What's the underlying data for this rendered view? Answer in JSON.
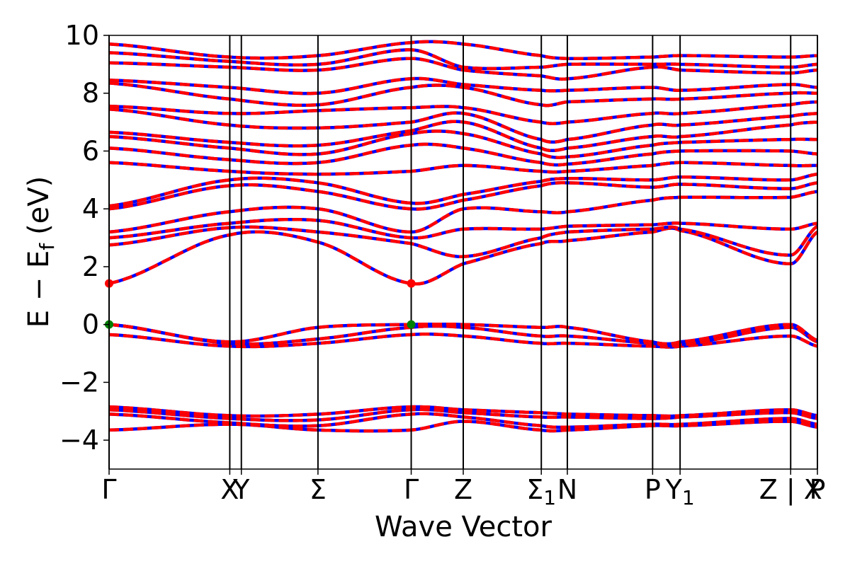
{
  "chart_data": {
    "type": "line",
    "title": "",
    "xlabel": "Wave Vector",
    "ylabel": "E − E_f (eV)",
    "ylabel_parts": {
      "main": "E − E",
      "sub": "f",
      "unit": "(eV)"
    },
    "ylim": [
      -5,
      10
    ],
    "yticks": [
      -4,
      -2,
      0,
      2,
      4,
      6,
      8,
      10
    ],
    "ytick_labels": [
      "−4",
      "−2",
      "0",
      "2",
      "4",
      "6",
      "8",
      "10"
    ],
    "xlim": [
      0,
      9.8
    ],
    "high_symmetry_points": [
      {
        "label": "Γ",
        "sub": "",
        "x": 0.0
      },
      {
        "label": "X",
        "sub": "",
        "x": 1.67
      },
      {
        "label": "Y",
        "sub": "",
        "x": 1.83
      },
      {
        "label": "Σ",
        "sub": "",
        "x": 2.89
      },
      {
        "label": "Γ",
        "sub": "",
        "x": 4.18
      },
      {
        "label": "Z",
        "sub": "",
        "x": 4.9
      },
      {
        "label": "Σ",
        "sub": "1",
        "x": 5.98
      },
      {
        "label": "N",
        "sub": "",
        "x": 6.34
      },
      {
        "label": "P",
        "sub": "",
        "x": 7.52
      },
      {
        "label": "Y",
        "sub": "1",
        "x": 7.9
      },
      {
        "label": "Z | X",
        "sub": "",
        "x": 9.43
      },
      {
        "label": "P",
        "sub": "",
        "x": 9.8
      }
    ],
    "markers": [
      {
        "name": "CBM",
        "x": 0.0,
        "y": 1.42,
        "color": "#ff0000"
      },
      {
        "name": "CBM",
        "x": 4.18,
        "y": 1.42,
        "color": "#ff0000"
      },
      {
        "name": "VBM",
        "x": 0.0,
        "y": 0.0,
        "color": "#008000"
      },
      {
        "name": "VBM",
        "x": 4.18,
        "y": 0.0,
        "color": "#008000"
      }
    ],
    "line_colors": {
      "spin_down": "#0000ff",
      "spin_up": "#ff0000"
    },
    "bands": [
      {
        "nodes": [
          [
            0,
            -3.65
          ],
          [
            1.67,
            -3.45
          ],
          [
            2.89,
            -3.65
          ],
          [
            4.18,
            -3.65
          ],
          [
            4.9,
            -3.35
          ],
          [
            5.98,
            -3.65
          ],
          [
            6.34,
            -3.65
          ],
          [
            7.52,
            -3.5
          ],
          [
            7.9,
            -3.5
          ],
          [
            9.43,
            -3.35
          ],
          [
            9.8,
            -3.55
          ]
        ]
      },
      {
        "nodes": [
          [
            0,
            -3.1
          ],
          [
            1.67,
            -3.4
          ],
          [
            2.89,
            -3.5
          ],
          [
            4.18,
            -3.1
          ],
          [
            4.9,
            -3.2
          ],
          [
            5.98,
            -3.5
          ],
          [
            6.34,
            -3.55
          ],
          [
            7.52,
            -3.45
          ],
          [
            7.9,
            -3.45
          ],
          [
            9.43,
            -3.25
          ],
          [
            9.8,
            -3.45
          ]
        ]
      },
      {
        "nodes": [
          [
            0,
            -2.95
          ],
          [
            1.67,
            -3.25
          ],
          [
            2.89,
            -3.3
          ],
          [
            4.18,
            -2.95
          ],
          [
            4.9,
            -3.05
          ],
          [
            5.98,
            -3.2
          ],
          [
            6.34,
            -3.2
          ],
          [
            7.52,
            -3.25
          ],
          [
            7.9,
            -3.2
          ],
          [
            9.43,
            -3.05
          ],
          [
            9.8,
            -3.25
          ]
        ]
      },
      {
        "nodes": [
          [
            0,
            -2.85
          ],
          [
            1.67,
            -3.15
          ],
          [
            2.89,
            -3.1
          ],
          [
            4.18,
            -2.85
          ],
          [
            4.9,
            -2.95
          ],
          [
            5.98,
            -3.05
          ],
          [
            6.34,
            -3.1
          ],
          [
            7.52,
            -3.15
          ],
          [
            7.9,
            -3.15
          ],
          [
            9.43,
            -2.95
          ],
          [
            9.8,
            -3.15
          ]
        ]
      },
      {
        "nodes": [
          [
            0,
            -0.35
          ],
          [
            1.67,
            -0.75
          ],
          [
            2.89,
            -0.65
          ],
          [
            4.18,
            -0.35
          ],
          [
            4.9,
            -0.4
          ],
          [
            5.98,
            -0.65
          ],
          [
            6.34,
            -0.65
          ],
          [
            7.52,
            -0.75
          ],
          [
            7.9,
            -0.75
          ],
          [
            9.43,
            -0.4
          ],
          [
            9.8,
            -0.75
          ]
        ]
      },
      {
        "nodes": [
          [
            0,
            0.0
          ],
          [
            1.67,
            -0.65
          ],
          [
            2.89,
            -0.5
          ],
          [
            4.18,
            -0.1
          ],
          [
            4.9,
            -0.1
          ],
          [
            5.98,
            -0.4
          ],
          [
            6.34,
            -0.4
          ],
          [
            7.52,
            -0.65
          ],
          [
            7.9,
            -0.7
          ],
          [
            9.43,
            -0.1
          ],
          [
            9.8,
            -0.6
          ]
        ]
      },
      {
        "nodes": [
          [
            0,
            0.0
          ],
          [
            1.67,
            -0.6
          ],
          [
            2.89,
            -0.1
          ],
          [
            4.18,
            0.0
          ],
          [
            4.9,
            0.0
          ],
          [
            5.98,
            -0.1
          ],
          [
            6.34,
            -0.1
          ],
          [
            7.52,
            -0.6
          ],
          [
            7.9,
            -0.6
          ],
          [
            9.43,
            0.0
          ],
          [
            9.8,
            -0.55
          ]
        ]
      },
      {
        "nodes": [
          [
            0,
            1.42
          ],
          [
            1.67,
            3.1
          ],
          [
            2.89,
            2.85
          ],
          [
            4.18,
            1.42
          ],
          [
            4.9,
            2.1
          ],
          [
            5.98,
            2.8
          ],
          [
            6.34,
            2.9
          ],
          [
            7.52,
            3.2
          ],
          [
            7.9,
            3.25
          ],
          [
            9.43,
            2.1
          ],
          [
            9.8,
            3.2
          ]
        ]
      },
      {
        "nodes": [
          [
            0,
            2.75
          ],
          [
            1.67,
            3.35
          ],
          [
            2.89,
            3.2
          ],
          [
            4.18,
            2.8
          ],
          [
            4.9,
            2.35
          ],
          [
            5.98,
            3.0
          ],
          [
            6.34,
            3.2
          ],
          [
            7.52,
            3.3
          ],
          [
            7.9,
            3.3
          ],
          [
            9.43,
            2.4
          ],
          [
            9.8,
            3.4
          ]
        ]
      },
      {
        "nodes": [
          [
            0,
            3.0
          ],
          [
            1.67,
            3.5
          ],
          [
            2.89,
            3.6
          ],
          [
            4.18,
            3.0
          ],
          [
            4.9,
            3.3
          ],
          [
            5.98,
            3.3
          ],
          [
            6.34,
            3.4
          ],
          [
            7.52,
            3.45
          ],
          [
            7.9,
            3.5
          ],
          [
            9.43,
            3.3
          ],
          [
            9.8,
            3.5
          ]
        ]
      },
      {
        "nodes": [
          [
            0,
            3.2
          ],
          [
            1.67,
            3.9
          ],
          [
            2.89,
            4.0
          ],
          [
            4.18,
            3.2
          ],
          [
            4.9,
            4.0
          ],
          [
            5.98,
            3.9
          ],
          [
            6.34,
            3.9
          ],
          [
            7.52,
            4.3
          ],
          [
            7.9,
            4.4
          ],
          [
            9.43,
            4.4
          ],
          [
            9.8,
            4.6
          ]
        ]
      },
      {
        "nodes": [
          [
            0,
            4.0
          ],
          [
            1.67,
            4.8
          ],
          [
            2.89,
            4.6
          ],
          [
            4.18,
            4.0
          ],
          [
            4.9,
            4.3
          ],
          [
            5.98,
            4.8
          ],
          [
            6.34,
            4.9
          ],
          [
            7.52,
            4.75
          ],
          [
            7.9,
            4.85
          ],
          [
            9.43,
            4.7
          ],
          [
            9.8,
            4.9
          ]
        ]
      },
      {
        "nodes": [
          [
            0,
            4.1
          ],
          [
            1.67,
            5.0
          ],
          [
            2.89,
            4.9
          ],
          [
            4.18,
            4.2
          ],
          [
            4.9,
            4.5
          ],
          [
            5.98,
            4.95
          ],
          [
            6.34,
            5.05
          ],
          [
            7.52,
            5.0
          ],
          [
            7.9,
            5.1
          ],
          [
            9.43,
            5.0
          ],
          [
            9.8,
            5.2
          ]
        ]
      },
      {
        "nodes": [
          [
            0,
            5.6
          ],
          [
            1.67,
            5.3
          ],
          [
            2.89,
            5.2
          ],
          [
            4.18,
            5.3
          ],
          [
            4.9,
            5.5
          ],
          [
            5.98,
            5.3
          ],
          [
            6.34,
            5.3
          ],
          [
            7.52,
            5.5
          ],
          [
            7.9,
            5.6
          ],
          [
            9.43,
            5.5
          ],
          [
            9.8,
            5.5
          ]
        ]
      },
      {
        "nodes": [
          [
            0,
            6.1
          ],
          [
            1.67,
            5.7
          ],
          [
            2.89,
            5.6
          ],
          [
            4.18,
            6.2
          ],
          [
            4.9,
            6.1
          ],
          [
            5.98,
            5.6
          ],
          [
            6.34,
            5.55
          ],
          [
            7.52,
            5.9
          ],
          [
            7.9,
            6.0
          ],
          [
            9.43,
            6.0
          ],
          [
            9.8,
            5.9
          ]
        ]
      },
      {
        "nodes": [
          [
            0,
            6.5
          ],
          [
            1.67,
            6.1
          ],
          [
            2.89,
            5.9
          ],
          [
            4.18,
            6.6
          ],
          [
            4.9,
            6.6
          ],
          [
            5.98,
            5.9
          ],
          [
            6.34,
            5.8
          ],
          [
            7.52,
            6.2
          ],
          [
            7.9,
            6.3
          ],
          [
            9.43,
            6.4
          ],
          [
            9.8,
            6.4
          ]
        ]
      },
      {
        "nodes": [
          [
            0,
            6.65
          ],
          [
            1.67,
            6.3
          ],
          [
            2.89,
            6.2
          ],
          [
            4.18,
            6.7
          ],
          [
            4.9,
            7.0
          ],
          [
            5.98,
            6.1
          ],
          [
            6.34,
            6.1
          ],
          [
            7.52,
            6.5
          ],
          [
            7.9,
            6.5
          ],
          [
            9.43,
            6.9
          ],
          [
            9.8,
            7.0
          ]
        ]
      },
      {
        "nodes": [
          [
            0,
            7.45
          ],
          [
            1.67,
            6.9
          ],
          [
            2.89,
            6.8
          ],
          [
            4.18,
            7.0
          ],
          [
            4.9,
            7.3
          ],
          [
            5.98,
            6.4
          ],
          [
            6.34,
            6.4
          ],
          [
            7.52,
            6.9
          ],
          [
            7.9,
            6.9
          ],
          [
            9.43,
            7.2
          ],
          [
            9.8,
            7.3
          ]
        ]
      },
      {
        "nodes": [
          [
            0,
            7.55
          ],
          [
            1.67,
            7.3
          ],
          [
            2.89,
            7.4
          ],
          [
            4.18,
            7.5
          ],
          [
            4.9,
            7.5
          ],
          [
            5.98,
            7.0
          ],
          [
            6.34,
            7.0
          ],
          [
            7.52,
            7.3
          ],
          [
            7.9,
            7.3
          ],
          [
            9.43,
            7.6
          ],
          [
            9.8,
            7.7
          ]
        ]
      },
      {
        "nodes": [
          [
            0,
            8.35
          ],
          [
            1.67,
            7.8
          ],
          [
            2.89,
            7.6
          ],
          [
            4.18,
            8.2
          ],
          [
            4.9,
            8.2
          ],
          [
            5.98,
            7.6
          ],
          [
            6.34,
            7.7
          ],
          [
            7.52,
            7.8
          ],
          [
            7.9,
            7.8
          ],
          [
            9.43,
            8.0
          ],
          [
            9.8,
            8.0
          ]
        ]
      },
      {
        "nodes": [
          [
            0,
            8.45
          ],
          [
            1.67,
            8.2
          ],
          [
            2.89,
            8.0
          ],
          [
            4.18,
            8.5
          ],
          [
            4.9,
            8.3
          ],
          [
            5.98,
            8.1
          ],
          [
            6.34,
            8.1
          ],
          [
            7.52,
            8.2
          ],
          [
            7.9,
            8.1
          ],
          [
            9.43,
            8.3
          ],
          [
            9.8,
            8.2
          ]
        ]
      },
      {
        "nodes": [
          [
            0,
            9.05
          ],
          [
            1.67,
            8.9
          ],
          [
            2.89,
            8.8
          ],
          [
            4.18,
            9.2
          ],
          [
            4.9,
            8.8
          ],
          [
            5.98,
            8.6
          ],
          [
            6.34,
            8.5
          ],
          [
            7.52,
            8.9
          ],
          [
            7.9,
            8.8
          ],
          [
            9.43,
            8.7
          ],
          [
            9.8,
            8.8
          ]
        ]
      },
      {
        "nodes": [
          [
            0,
            9.4
          ],
          [
            1.67,
            9.1
          ],
          [
            2.89,
            9.0
          ],
          [
            4.18,
            9.5
          ],
          [
            4.9,
            8.9
          ],
          [
            5.98,
            8.9
          ],
          [
            6.34,
            9.0
          ],
          [
            7.52,
            9.0
          ],
          [
            7.9,
            9.0
          ],
          [
            9.43,
            8.9
          ],
          [
            9.8,
            9.0
          ]
        ]
      },
      {
        "nodes": [
          [
            0,
            9.7
          ],
          [
            1.67,
            9.25
          ],
          [
            2.89,
            9.3
          ],
          [
            4.18,
            9.75
          ],
          [
            4.9,
            9.7
          ],
          [
            5.98,
            9.3
          ],
          [
            6.34,
            9.2
          ],
          [
            7.52,
            9.25
          ],
          [
            7.9,
            9.3
          ],
          [
            9.43,
            9.25
          ],
          [
            9.8,
            9.3
          ]
        ]
      }
    ]
  }
}
